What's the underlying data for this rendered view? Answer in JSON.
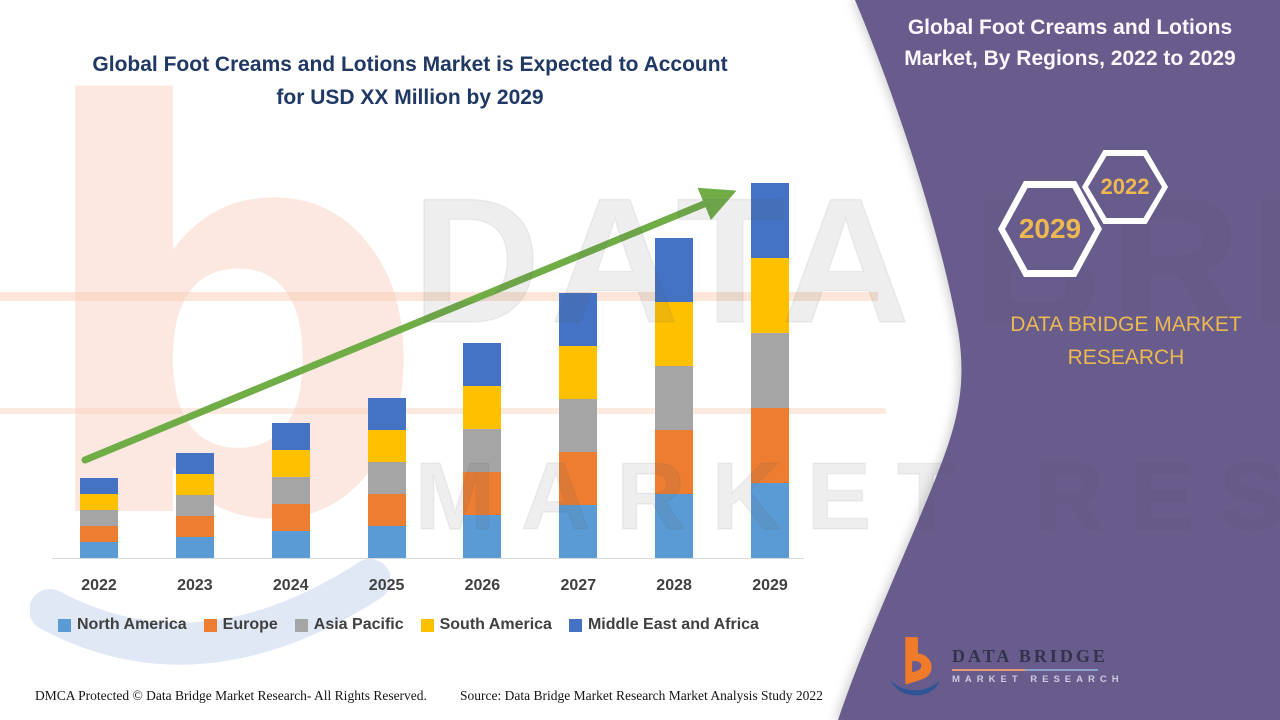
{
  "colors": {
    "purple": "#685C8D",
    "title_navy": "#1F3864",
    "gold": "#EDB851",
    "green_arrow": "#70AD47",
    "axis_text": "#404040",
    "baseline": "#D9D9D9"
  },
  "chart_data": {
    "type": "bar",
    "stacked": true,
    "title": "Global Foot Creams and Lotions Market is Expected to Account for USD XX Million by 2029",
    "title_lines": [
      "Global Foot Creams and Lotions Market is Expected to Account",
      "for USD XX Million by 2029"
    ],
    "xlabel": "",
    "ylabel": "",
    "y_axis_shown": false,
    "values_labeled": false,
    "grid": false,
    "legend_position": "bottom",
    "categories": [
      "2022",
      "2023",
      "2024",
      "2025",
      "2026",
      "2027",
      "2028",
      "2029"
    ],
    "series": [
      {
        "name": "North America",
        "color": "#5B9BD5",
        "values": [
          16,
          21,
          27,
          32,
          43,
          53,
          64,
          75
        ]
      },
      {
        "name": "Europe",
        "color": "#ED7D31",
        "values": [
          16,
          21,
          27,
          32,
          43,
          53,
          64,
          75
        ]
      },
      {
        "name": "Asia Pacific",
        "color": "#A5A5A5",
        "values": [
          16,
          21,
          27,
          32,
          43,
          53,
          64,
          75
        ]
      },
      {
        "name": "South America",
        "color": "#FFC000",
        "values": [
          16,
          21,
          27,
          32,
          43,
          53,
          64,
          75
        ]
      },
      {
        "name": "Middle East and Africa",
        "color": "#4472C4",
        "values": [
          16,
          21,
          27,
          32,
          43,
          53,
          64,
          75
        ]
      }
    ],
    "stack_totals_relative": [
      80,
      105,
      135,
      160,
      215,
      265,
      320,
      375
    ],
    "trend_arrow": {
      "direction": "up",
      "color": "#70AD47"
    }
  },
  "right_panel": {
    "title_lines": [
      "Global Foot Creams and Lotions",
      "Market, By Regions, 2022 to 2029"
    ],
    "hexagons": [
      {
        "label": "2029"
      },
      {
        "label": "2022"
      }
    ],
    "brand_lines": [
      "DATA BRIDGE MARKET",
      "RESEARCH"
    ]
  },
  "logo": {
    "title": "DATA BRIDGE",
    "subtitle": "MARKET RESEARCH"
  },
  "footer": {
    "left": "DMCA Protected © Data Bridge Market Research- All Rights Reserved.",
    "right": "Source: Data Bridge Market Research Market Analysis Study 2022"
  },
  "watermark": {
    "letter": "b",
    "text_top": "DATA BRI",
    "text_bottom": "MARKET RESEARCH"
  }
}
